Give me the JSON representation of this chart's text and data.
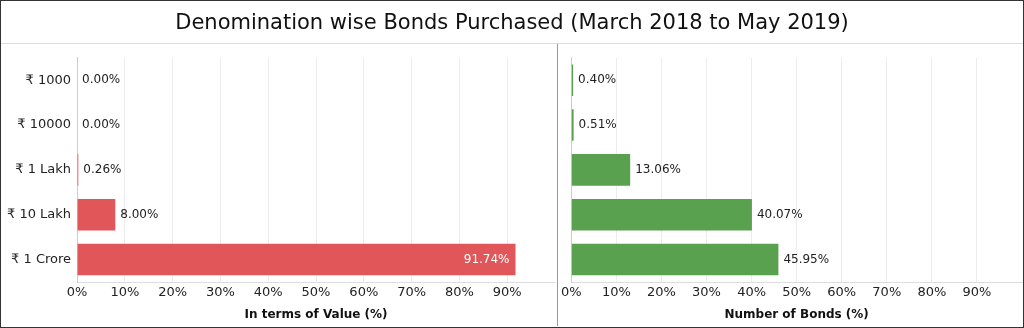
{
  "chart_data": [
    {
      "type": "bar",
      "orientation": "horizontal",
      "title": "Denomination wise Bonds Purchased (March 2018 to May 2019)",
      "xlabel": "In terms of Value (%)",
      "categories": [
        "₹ 1000",
        "₹ 10000",
        "₹ 1 Lakh",
        "₹ 10 Lakh",
        "₹ 1 Crore"
      ],
      "values": [
        0,
        0,
        0.26,
        8,
        91.74
      ],
      "value_labels": [
        "0.00%",
        "0.00%",
        "0.26%",
        "8.00%",
        "91.74%"
      ],
      "color": "#e15759",
      "xlim": [
        0,
        100
      ],
      "xticks": [
        {
          "value": 0,
          "label": "0%"
        },
        {
          "value": 10,
          "label": "10%"
        },
        {
          "value": 20,
          "label": "20%"
        },
        {
          "value": 30,
          "label": "30%"
        },
        {
          "value": 40,
          "label": "40%"
        },
        {
          "value": 50,
          "label": "50%"
        },
        {
          "value": 60,
          "label": "60%"
        },
        {
          "value": 70,
          "label": "70%"
        },
        {
          "value": 80,
          "label": "80%"
        },
        {
          "value": 90,
          "label": "90%"
        }
      ],
      "grid": "x",
      "legend": false
    },
    {
      "type": "bar",
      "orientation": "horizontal",
      "xlabel": "Number of Bonds (%)",
      "categories": [
        null,
        null,
        null,
        null,
        null
      ],
      "values": [
        0.4,
        0.51,
        13.06,
        40.07,
        45.95
      ],
      "value_labels": [
        "0.40%",
        "0.51%",
        "13.06%",
        "40.07%",
        "45.95%"
      ],
      "color": "#59a14f",
      "xlim": [
        0,
        100
      ],
      "xticks": [
        {
          "value": 0,
          "label": "0%"
        },
        {
          "value": 10,
          "label": "10%"
        },
        {
          "value": 20,
          "label": "20%"
        },
        {
          "value": 30,
          "label": "30%"
        },
        {
          "value": 40,
          "label": "40%"
        },
        {
          "value": 50,
          "label": "50%"
        },
        {
          "value": 60,
          "label": "60%"
        },
        {
          "value": 70,
          "label": "70%"
        },
        {
          "value": 80,
          "label": "80%"
        },
        {
          "value": 90,
          "label": "90%"
        }
      ],
      "grid": "x",
      "legend": false
    }
  ]
}
